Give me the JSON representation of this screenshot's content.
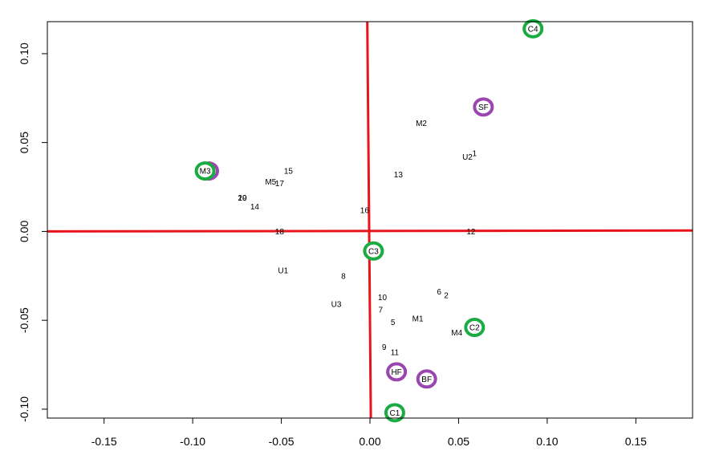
{
  "chart_data": {
    "type": "scatter",
    "title": "",
    "xlabel": "",
    "ylabel": "",
    "xlim": [
      -0.182,
      0.182
    ],
    "ylim": [
      -0.105,
      0.118
    ],
    "x_ticks": [
      "-0.15",
      "-0.10",
      "-0.05",
      "0.00",
      "0.05",
      "0.10",
      "0.15"
    ],
    "x_tick_values": [
      -0.15,
      -0.1,
      -0.05,
      0.0,
      0.05,
      0.1,
      0.15
    ],
    "y_ticks": [
      "-0.10",
      "-0.05",
      "0.00",
      "0.05",
      "0.10"
    ],
    "y_tick_values": [
      -0.1,
      -0.05,
      0.0,
      0.05,
      0.1
    ],
    "reference_lines": {
      "color": "#e8141c",
      "horizontal": {
        "x": [
          -0.182,
          0.182
        ],
        "y": [
          0.0,
          0.0005
        ]
      },
      "vertical": {
        "x": [
          -0.0015,
          0.0005
        ],
        "y": [
          0.118,
          -0.105
        ]
      }
    },
    "points": [
      {
        "label": "M2",
        "x": 0.029,
        "y": 0.061
      },
      {
        "label": "1",
        "x": 0.059,
        "y": 0.044
      },
      {
        "label": "U2",
        "x": 0.055,
        "y": 0.042
      },
      {
        "label": "13",
        "x": 0.016,
        "y": 0.032
      },
      {
        "label": "15",
        "x": -0.046,
        "y": 0.034
      },
      {
        "label": "17",
        "x": -0.051,
        "y": 0.027
      },
      {
        "label": "M5",
        "x": -0.056,
        "y": 0.028
      },
      {
        "label": "20",
        "x": -0.072,
        "y": 0.019
      },
      {
        "label": "19",
        "x": -0.072,
        "y": 0.019
      },
      {
        "label": "14",
        "x": -0.065,
        "y": 0.014
      },
      {
        "label": "16",
        "x": -0.003,
        "y": 0.012
      },
      {
        "label": "18",
        "x": -0.051,
        "y": 0.0
      },
      {
        "label": "12",
        "x": 0.057,
        "y": 0.0
      },
      {
        "label": "U1",
        "x": -0.049,
        "y": -0.022
      },
      {
        "label": "8",
        "x": -0.015,
        "y": -0.025
      },
      {
        "label": "6",
        "x": 0.039,
        "y": -0.034
      },
      {
        "label": "2",
        "x": 0.043,
        "y": -0.036
      },
      {
        "label": "10",
        "x": 0.007,
        "y": -0.037
      },
      {
        "label": "U3",
        "x": -0.019,
        "y": -0.041
      },
      {
        "label": "7",
        "x": 0.006,
        "y": -0.044
      },
      {
        "label": "M1",
        "x": 0.027,
        "y": -0.049
      },
      {
        "label": "5",
        "x": 0.013,
        "y": -0.051
      },
      {
        "label": "M4",
        "x": 0.049,
        "y": -0.057
      },
      {
        "label": "9",
        "x": 0.008,
        "y": -0.065
      },
      {
        "label": "11",
        "x": 0.014,
        "y": -0.068
      },
      {
        "label": "M3",
        "x": -0.093,
        "y": 0.034
      }
    ],
    "circled_points": [
      {
        "label": "C4",
        "x": 0.092,
        "y": 0.114,
        "color": "#1aab41"
      },
      {
        "label": "SF",
        "x": 0.064,
        "y": 0.07,
        "color": "#9b46b0"
      },
      {
        "label": "C3",
        "x": 0.002,
        "y": -0.011,
        "color": "#1aab41"
      },
      {
        "label": "C2",
        "x": 0.059,
        "y": -0.054,
        "color": "#1aab41"
      },
      {
        "label": "HF",
        "x": 0.015,
        "y": -0.079,
        "color": "#9b46b0"
      },
      {
        "label": "BF",
        "x": 0.032,
        "y": -0.083,
        "color": "#9b46b0"
      },
      {
        "label": "C1",
        "x": 0.014,
        "y": -0.102,
        "color": "#1aab41"
      },
      {
        "label": "",
        "x": -0.091,
        "y": 0.034,
        "color": "#9b46b0"
      },
      {
        "label": "",
        "x": -0.093,
        "y": 0.034,
        "color": "#1aab41"
      }
    ],
    "colors": {
      "green": "#1aab41",
      "purple": "#9b46b0",
      "red": "#e8141c"
    }
  }
}
